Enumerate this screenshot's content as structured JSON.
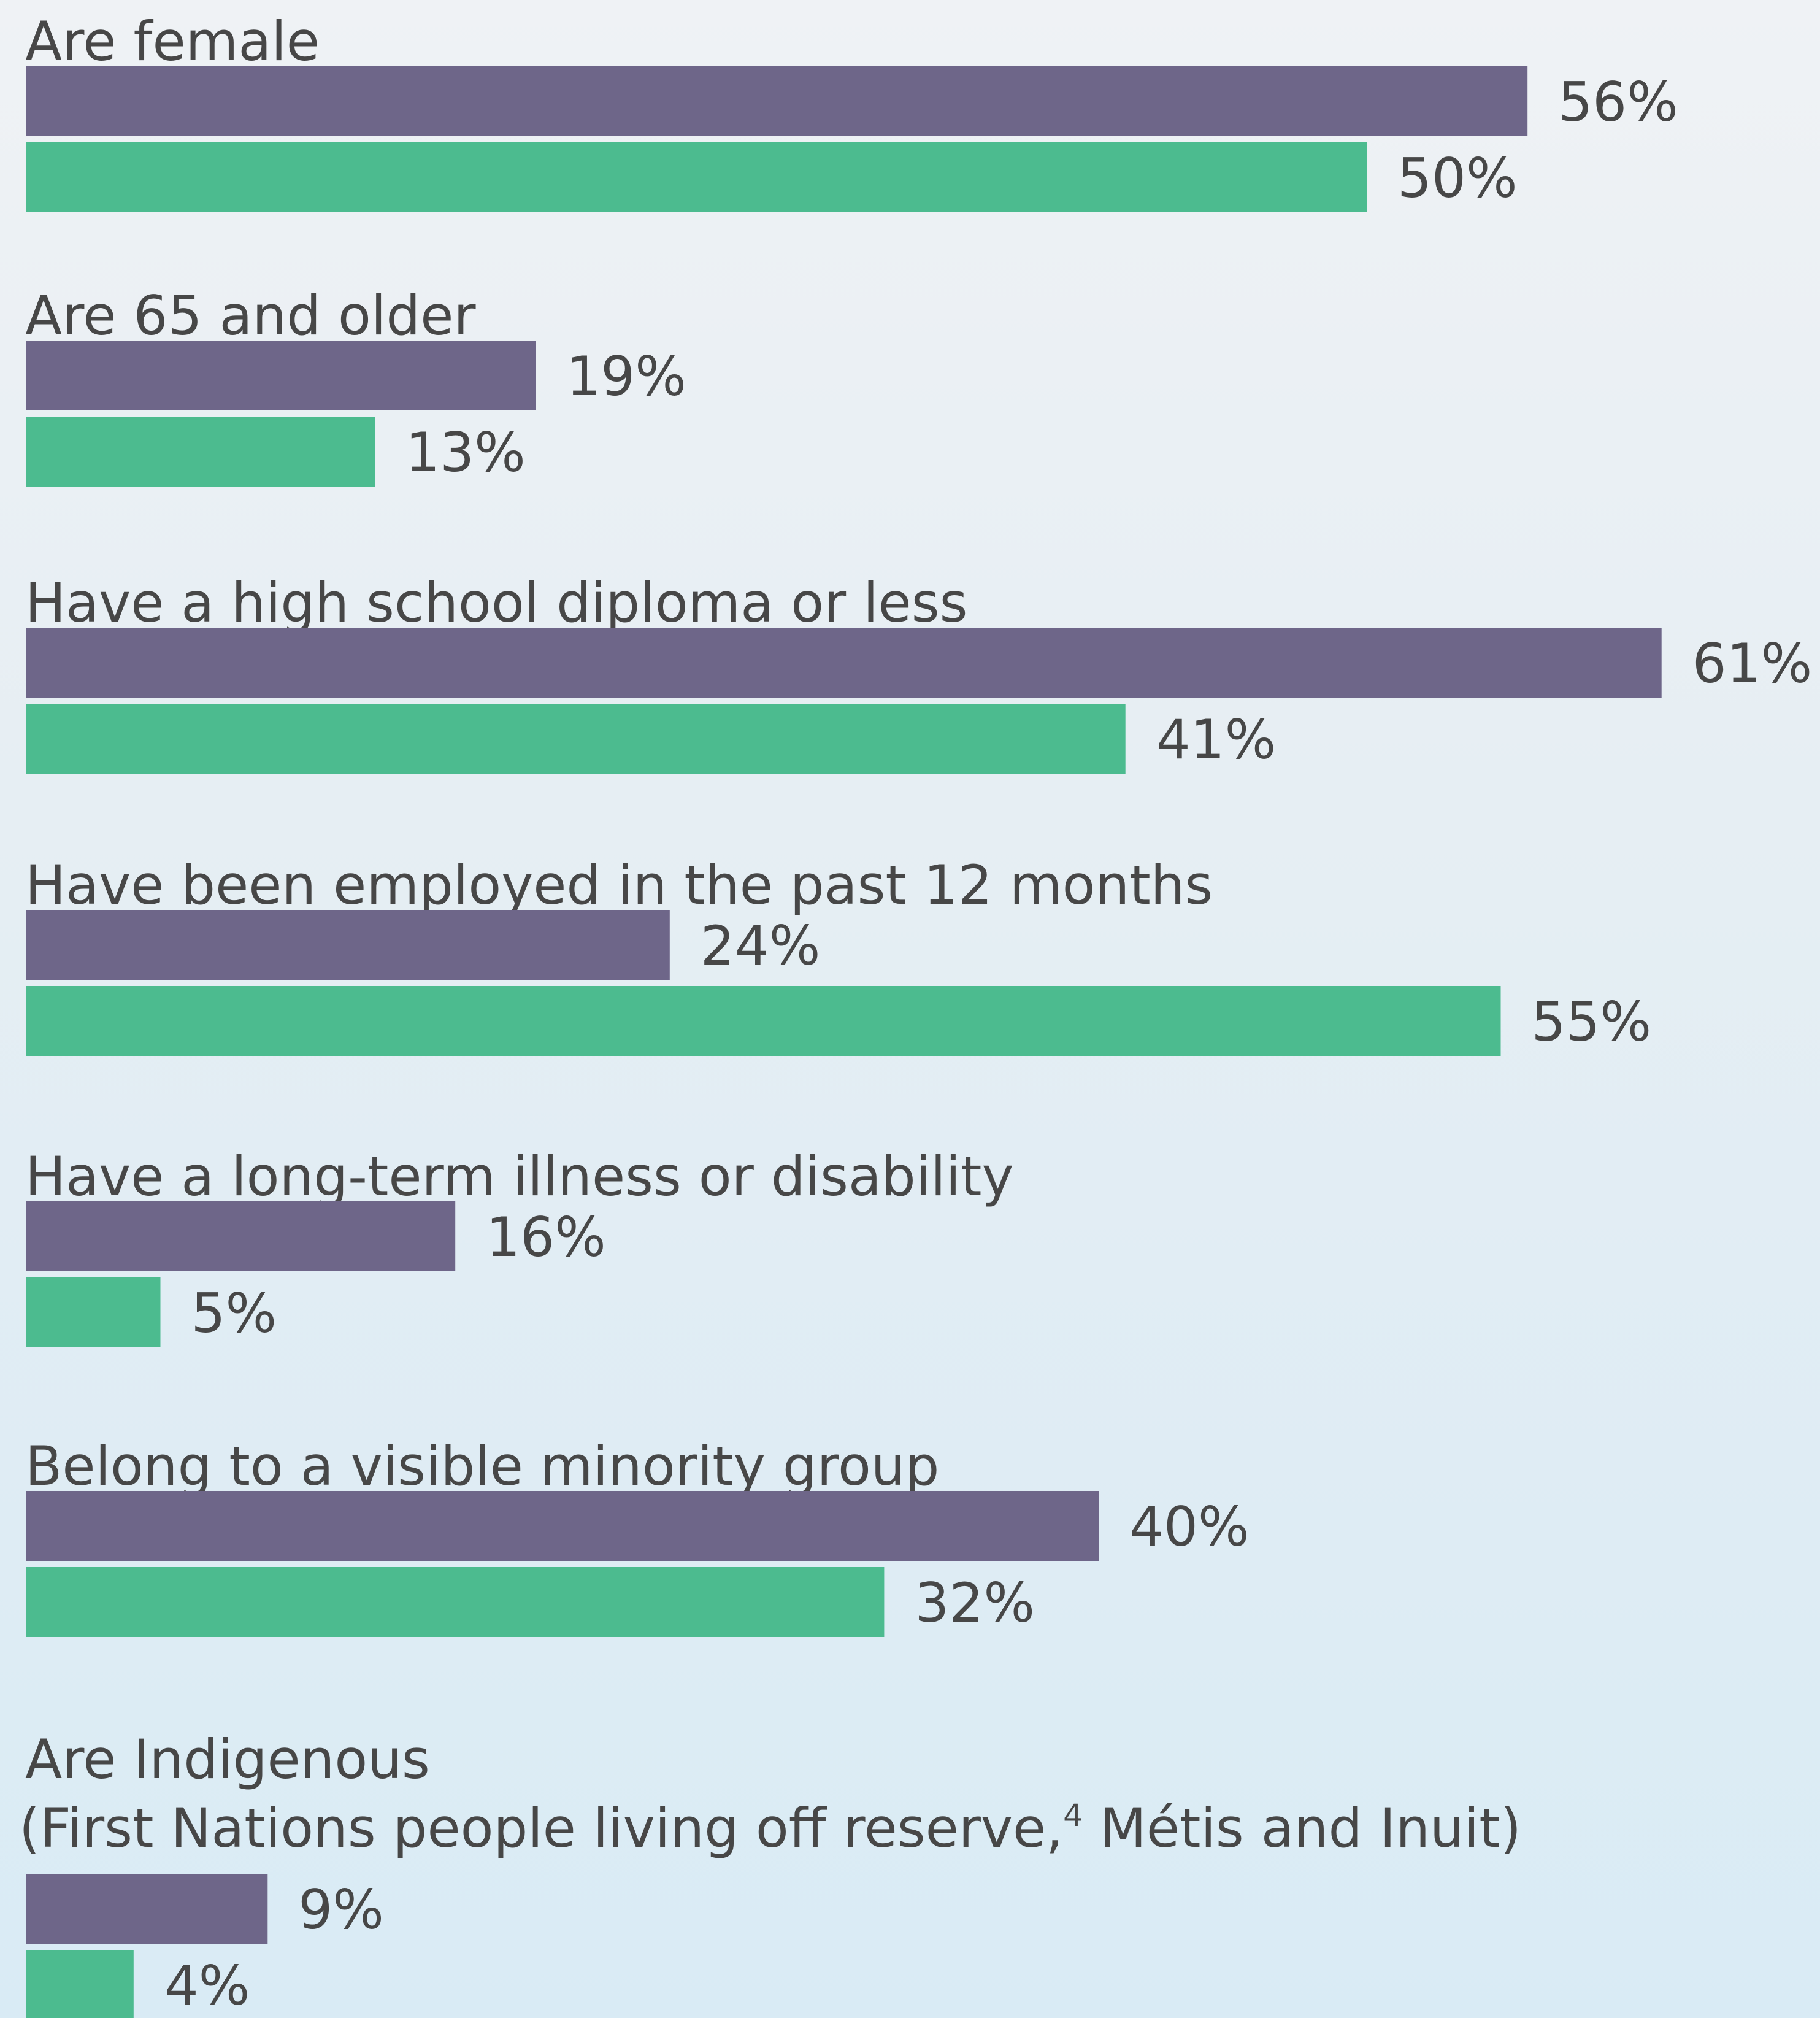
{
  "chart_data": {
    "type": "bar",
    "orientation": "horizontal",
    "categories": [
      "Are female",
      "Are 65 and older",
      "Have a high school diploma or less",
      "Have been employed in the past 12 months",
      "Have a long-term illness or disability",
      "Belong to a visible minority group",
      "Are Indigenous"
    ],
    "category_sublabels": [
      "",
      "",
      "",
      "",
      "",
      "",
      "(First Nations people living off reserve,4 Métis and Inuit)"
    ],
    "series": [
      {
        "color": "#6e6689",
        "values": [
          56,
          19,
          61,
          24,
          16,
          40,
          9
        ],
        "value_labels": [
          "56%",
          "19%",
          "61%",
          "24%",
          "16%",
          "40%",
          "9%"
        ]
      },
      {
        "color": "#4cbb8f",
        "values": [
          50,
          13,
          41,
          55,
          5,
          32,
          4
        ],
        "value_labels": [
          "50%",
          "13%",
          "41%",
          "55%",
          "5%",
          "32%",
          "4%"
        ]
      }
    ],
    "value_unit": "%",
    "grid": false,
    "legend": "none"
  }
}
